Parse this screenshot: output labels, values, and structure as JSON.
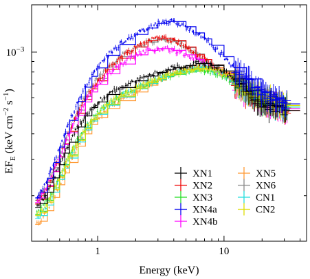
{
  "chart_data": {
    "type": "line",
    "title": "",
    "xlabel": "Energy (keV)",
    "ylabel": {
      "base": "EF",
      "base_sub": "E",
      "rest": " (keV cm",
      "exp1": "−2",
      "mid": " s",
      "exp2": "−1",
      "end": ")"
    },
    "xscale": "log",
    "yscale": "log",
    "xlim": [
      0.3,
      45
    ],
    "ylim": [
      0.00012,
      0.0017
    ],
    "x_ticks": [
      {
        "value": 1,
        "label": "1"
      },
      {
        "value": 10,
        "label": "10"
      }
    ],
    "y_ticks": [
      {
        "value": 0.001,
        "label_base": "10",
        "label_exp": "−3"
      }
    ],
    "legend_placement": "bottom-right",
    "energies": [
      0.32,
      0.35,
      0.4,
      0.45,
      0.5,
      0.55,
      0.6,
      0.7,
      0.8,
      0.9,
      1.0,
      1.2,
      1.5,
      2.0,
      2.5,
      3.0,
      3.5,
      4.0,
      5.0,
      6.0,
      7.0,
      8.0,
      10.0,
      12.0,
      15.0,
      20.0,
      25.0,
      30.0,
      40.0
    ],
    "series": [
      {
        "name": "XN1",
        "color": "#000000",
        "values": [
          0.000175,
          0.000183,
          0.000208,
          0.000244,
          0.000283,
          0.000322,
          0.000364,
          0.000432,
          0.000489,
          0.000537,
          0.000572,
          0.000622,
          0.000672,
          0.000725,
          0.000765,
          0.000795,
          0.00082,
          0.00084,
          0.00086,
          0.00088,
          0.00088,
          0.00086,
          0.00081,
          0.00074,
          0.00065,
          0.00056,
          0.00054,
          0.00052,
          0.00052
        ]
      },
      {
        "name": "XN2",
        "color": "#ee0000",
        "values": [
          0.000182,
          0.000192,
          0.000222,
          0.000262,
          0.000309,
          0.000358,
          0.000411,
          0.000503,
          0.000588,
          0.000662,
          0.000725,
          0.000825,
          0.000935,
          0.00106,
          0.00114,
          0.00117,
          0.00117,
          0.00114,
          0.00106,
          0.00097,
          0.00092,
          0.00086,
          0.00079,
          0.00071,
          0.00063,
          0.00058,
          0.00055,
          0.00052,
          0.0005
        ]
      },
      {
        "name": "XN3",
        "color": "#22dd22",
        "values": [
          0.000162,
          0.000168,
          0.00019,
          0.000218,
          0.00025,
          0.000283,
          0.000316,
          0.000376,
          0.000428,
          0.00047,
          0.000505,
          0.000555,
          0.000608,
          0.000665,
          0.000705,
          0.000735,
          0.00076,
          0.00078,
          0.0008,
          0.00081,
          0.00081,
          0.0008,
          0.00076,
          0.00071,
          0.00064,
          0.00058,
          0.00056,
          0.00054,
          0.00053
        ]
      },
      {
        "name": "XN4a",
        "color": "#0000ee",
        "values": [
          0.000195,
          0.000208,
          0.000243,
          0.00029,
          0.000345,
          0.000403,
          0.000465,
          0.000575,
          0.000675,
          0.000762,
          0.000838,
          0.000965,
          0.00109,
          0.00122,
          0.00131,
          0.00138,
          0.00141,
          0.00141,
          0.00133,
          0.00124,
          0.00116,
          0.00108,
          0.00095,
          0.00084,
          0.00074,
          0.00064,
          0.0006,
          0.00056,
          0.00054
        ]
      },
      {
        "name": "XN4b",
        "color": "#ff00ff",
        "values": [
          0.000185,
          0.000195,
          0.000224,
          0.000263,
          0.000308,
          0.000355,
          0.000405,
          0.000493,
          0.000572,
          0.00064,
          0.000697,
          0.000785,
          0.000875,
          0.00097,
          0.00102,
          0.00104,
          0.00104,
          0.00102,
          0.00097,
          0.00092,
          0.00088,
          0.00084,
          0.00077,
          0.0007,
          0.00063,
          0.00058,
          0.00055,
          0.00053,
          0.00052
        ]
      },
      {
        "name": "XN5",
        "color": "#ff9933",
        "values": [
          0.000145,
          0.00015,
          0.000169,
          0.000196,
          0.000226,
          0.000258,
          0.00029,
          0.000348,
          0.0004,
          0.000444,
          0.00048,
          0.000532,
          0.00058,
          0.00064,
          0.00069,
          0.00073,
          0.00076,
          0.00079,
          0.00083,
          0.00085,
          0.00085,
          0.00084,
          0.0008,
          0.00074,
          0.00066,
          0.00059,
          0.00056,
          0.00054,
          0.00053
        ]
      },
      {
        "name": "XN6",
        "color": "#888888",
        "values": [
          0.00019,
          0.0002,
          0.000232,
          0.000274,
          0.000322,
          0.000373,
          0.000427,
          0.000522,
          0.000608,
          0.000683,
          0.000745,
          0.000845,
          0.00095,
          0.00106,
          0.00112,
          0.00115,
          0.00115,
          0.00113,
          0.00105,
          0.00098,
          0.00092,
          0.00087,
          0.0008,
          0.00072,
          0.00064,
          0.00058,
          0.00055,
          0.00053,
          0.00052
        ]
      },
      {
        "name": "CN1",
        "color": "#22dddd",
        "values": [
          0.000155,
          0.00016,
          0.00018,
          0.000208,
          0.00024,
          0.000272,
          0.000305,
          0.000365,
          0.000418,
          0.000462,
          0.000498,
          0.000552,
          0.000605,
          0.000663,
          0.000705,
          0.000738,
          0.000765,
          0.00079,
          0.00082,
          0.00084,
          0.00084,
          0.00082,
          0.00078,
          0.00072,
          0.00065,
          0.00059,
          0.00056,
          0.00054,
          0.00053
        ]
      },
      {
        "name": "CN2",
        "color": "#dddd00",
        "values": [
          0.00016,
          0.000165,
          0.000186,
          0.000214,
          0.000246,
          0.000279,
          0.000312,
          0.000372,
          0.000425,
          0.000469,
          0.000505,
          0.000558,
          0.00061,
          0.000668,
          0.00071,
          0.000742,
          0.00077,
          0.00079,
          0.00082,
          0.00083,
          0.00083,
          0.00082,
          0.00078,
          0.00073,
          0.00066,
          0.0006,
          0.00057,
          0.00055,
          0.00054
        ]
      }
    ]
  }
}
